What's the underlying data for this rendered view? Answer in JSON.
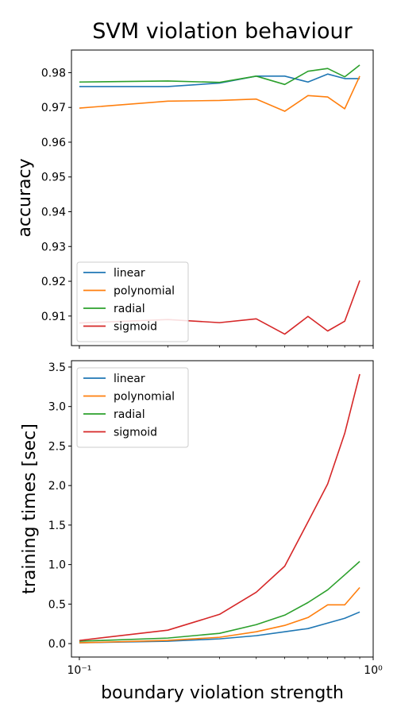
{
  "title": "SVM violation behaviour",
  "chart_data": [
    {
      "type": "line",
      "ylabel": "accuracy",
      "xlabel": "",
      "xscale": "log",
      "xlim": [
        0.094,
        1.0
      ],
      "ylim": [
        0.9015,
        0.9865
      ],
      "yticks": [
        0.91,
        0.92,
        0.93,
        0.94,
        0.95,
        0.96,
        0.97,
        0.98
      ],
      "ytick_labels": [
        "0.91",
        "0.92",
        "0.93",
        "0.94",
        "0.95",
        "0.96",
        "0.97",
        "0.98"
      ],
      "xticks": [
        0.1,
        1.0
      ],
      "xtick_labels": [
        "",
        ""
      ],
      "legend": "lower-left",
      "x": [
        0.1,
        0.2,
        0.3,
        0.4,
        0.5,
        0.6,
        0.7,
        0.8,
        0.9
      ],
      "series": [
        {
          "name": "linear",
          "color": "#1f77b4",
          "values": [
            0.976,
            0.976,
            0.977,
            0.979,
            0.979,
            0.9773,
            0.9796,
            0.9783,
            0.9783
          ]
        },
        {
          "name": "polynomial",
          "color": "#ff7f0e",
          "values": [
            0.9698,
            0.9718,
            0.972,
            0.9724,
            0.9689,
            0.9734,
            0.973,
            0.9696,
            0.979
          ]
        },
        {
          "name": "radial",
          "color": "#2ca02c",
          "values": [
            0.9773,
            0.9776,
            0.9772,
            0.979,
            0.9766,
            0.9804,
            0.9812,
            0.9788,
            0.9822
          ]
        },
        {
          "name": "sigmoid",
          "color": "#d62728",
          "values": [
            0.908,
            0.909,
            0.9081,
            0.9092,
            0.9048,
            0.9099,
            0.9057,
            0.9085,
            0.9202
          ]
        }
      ]
    },
    {
      "type": "line",
      "ylabel": "training times [sec]",
      "xlabel": "boundary violation strength",
      "xscale": "log",
      "xlim": [
        0.094,
        1.0
      ],
      "ylim": [
        -0.17,
        3.58
      ],
      "yticks": [
        0.0,
        0.5,
        1.0,
        1.5,
        2.0,
        2.5,
        3.0,
        3.5
      ],
      "ytick_labels": [
        "0.0",
        "0.5",
        "1.0",
        "1.5",
        "2.0",
        "2.5",
        "3.0",
        "3.5"
      ],
      "xticks": [
        0.1,
        1.0
      ],
      "xtick_labels": [
        "10⁻¹",
        "10⁰"
      ],
      "legend": "upper-left",
      "x": [
        0.1,
        0.2,
        0.3,
        0.4,
        0.5,
        0.6,
        0.7,
        0.8,
        0.9
      ],
      "series": [
        {
          "name": "linear",
          "color": "#1f77b4",
          "values": [
            0.01,
            0.03,
            0.06,
            0.1,
            0.15,
            0.19,
            0.26,
            0.32,
            0.4
          ]
        },
        {
          "name": "polynomial",
          "color": "#ff7f0e",
          "values": [
            0.01,
            0.04,
            0.08,
            0.15,
            0.23,
            0.33,
            0.49,
            0.49,
            0.71
          ]
        },
        {
          "name": "radial",
          "color": "#2ca02c",
          "values": [
            0.03,
            0.07,
            0.13,
            0.24,
            0.36,
            0.52,
            0.68,
            0.87,
            1.04
          ]
        },
        {
          "name": "sigmoid",
          "color": "#d62728",
          "values": [
            0.04,
            0.17,
            0.37,
            0.65,
            0.98,
            1.54,
            2.02,
            2.66,
            3.41
          ]
        }
      ]
    }
  ]
}
